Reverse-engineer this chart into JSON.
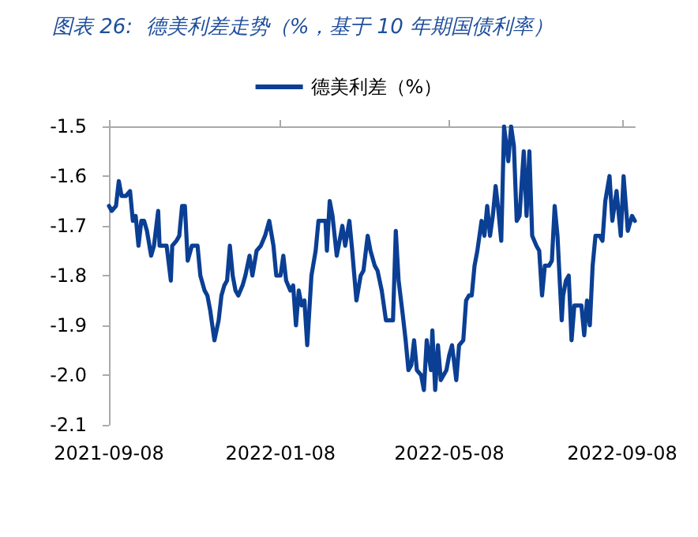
{
  "chart_data": {
    "type": "line",
    "title": "图表 26:  德美利差走势（%，基于 10 年期国债利率）",
    "x": [
      "2021-09-08",
      "2021-09-10",
      "2021-09-13",
      "2021-09-15",
      "2021-09-17",
      "2021-09-20",
      "2021-09-23",
      "2021-09-25",
      "2021-09-27",
      "2021-09-29",
      "2021-10-01",
      "2021-10-03",
      "2021-10-05",
      "2021-10-08",
      "2021-10-10",
      "2021-10-13",
      "2021-10-14",
      "2021-10-19",
      "2021-10-22",
      "2021-10-23",
      "2021-10-26",
      "2021-10-28",
      "2021-10-30",
      "2021-11-01",
      "2021-11-03",
      "2021-11-06",
      "2021-11-10",
      "2021-11-12",
      "2021-11-15",
      "2021-11-17",
      "2021-11-19",
      "2021-11-22",
      "2021-11-25",
      "2021-11-27",
      "2021-11-29",
      "2021-12-01",
      "2021-12-03",
      "2021-12-05",
      "2021-12-07",
      "2021-12-09",
      "2021-12-12",
      "2021-12-14",
      "2021-12-17",
      "2021-12-19",
      "2021-12-22",
      "2021-12-25",
      "2021-12-28",
      "2021-12-31",
      "2022-01-03",
      "2022-01-05",
      "2022-01-08",
      "2022-01-10",
      "2022-01-12",
      "2022-01-15",
      "2022-01-17",
      "2022-01-19",
      "2022-01-21",
      "2022-01-23",
      "2022-01-25",
      "2022-01-27",
      "2022-01-30",
      "2022-02-02",
      "2022-02-04",
      "2022-02-09",
      "2022-02-10",
      "2022-02-12",
      "2022-02-14",
      "2022-02-17",
      "2022-02-19",
      "2022-02-21",
      "2022-02-23",
      "2022-02-26",
      "2022-02-28",
      "2022-03-03",
      "2022-03-06",
      "2022-03-08",
      "2022-03-11",
      "2022-03-13",
      "2022-03-16",
      "2022-03-18",
      "2022-03-21",
      "2022-03-24",
      "2022-03-29",
      "2022-03-31",
      "2022-04-02",
      "2022-04-05",
      "2022-04-07",
      "2022-04-09",
      "2022-04-11",
      "2022-04-13",
      "2022-04-15",
      "2022-04-18",
      "2022-04-20",
      "2022-04-22",
      "2022-04-25",
      "2022-04-26",
      "2022-04-28",
      "2022-04-30",
      "2022-05-02",
      "2022-05-04",
      "2022-05-06",
      "2022-05-08",
      "2022-05-10",
      "2022-05-13",
      "2022-05-15",
      "2022-05-18",
      "2022-05-20",
      "2022-05-22",
      "2022-05-24",
      "2022-05-26",
      "2022-05-28",
      "2022-05-31",
      "2022-06-02",
      "2022-06-04",
      "2022-06-06",
      "2022-06-08",
      "2022-06-10",
      "2022-06-12",
      "2022-06-14",
      "2022-06-16",
      "2022-06-19",
      "2022-06-21",
      "2022-06-23",
      "2022-06-25",
      "2022-06-27",
      "2022-06-30",
      "2022-07-02",
      "2022-07-04",
      "2022-07-06",
      "2022-07-09",
      "2022-07-11",
      "2022-07-13",
      "2022-07-15",
      "2022-07-18",
      "2022-07-20",
      "2022-07-22",
      "2022-07-24",
      "2022-07-27",
      "2022-07-28",
      "2022-07-30",
      "2022-08-01",
      "2022-08-03",
      "2022-08-05",
      "2022-08-08",
      "2022-08-10",
      "2022-08-12",
      "2022-08-14",
      "2022-08-16",
      "2022-08-18",
      "2022-08-20",
      "2022-08-23",
      "2022-08-25",
      "2022-08-27",
      "2022-08-30",
      "2022-09-01",
      "2022-09-04",
      "2022-09-07",
      "2022-09-09",
      "2022-09-12",
      "2022-09-15",
      "2022-09-17"
    ],
    "series": [
      {
        "name": "德美利差（%）",
        "color": "#0b3f94",
        "values": [
          -1.66,
          -1.67,
          -1.66,
          -1.61,
          -1.64,
          -1.64,
          -1.63,
          -1.69,
          -1.68,
          -1.74,
          -1.69,
          -1.69,
          -1.71,
          -1.76,
          -1.74,
          -1.67,
          -1.74,
          -1.74,
          -1.81,
          -1.74,
          -1.73,
          -1.72,
          -1.66,
          -1.66,
          -1.77,
          -1.74,
          -1.74,
          -1.8,
          -1.83,
          -1.84,
          -1.87,
          -1.93,
          -1.89,
          -1.84,
          -1.82,
          -1.81,
          -1.74,
          -1.8,
          -1.83,
          -1.84,
          -1.82,
          -1.8,
          -1.76,
          -1.8,
          -1.75,
          -1.74,
          -1.72,
          -1.69,
          -1.74,
          -1.8,
          -1.8,
          -1.76,
          -1.81,
          -1.83,
          -1.82,
          -1.9,
          -1.83,
          -1.86,
          -1.85,
          -1.94,
          -1.8,
          -1.75,
          -1.69,
          -1.69,
          -1.75,
          -1.65,
          -1.68,
          -1.76,
          -1.73,
          -1.7,
          -1.74,
          -1.69,
          -1.75,
          -1.85,
          -1.8,
          -1.79,
          -1.72,
          -1.75,
          -1.78,
          -1.79,
          -1.83,
          -1.89,
          -1.89,
          -1.71,
          -1.81,
          -1.88,
          -1.93,
          -1.99,
          -1.98,
          -1.93,
          -1.99,
          -2.0,
          -2.03,
          -1.93,
          -1.99,
          -1.91,
          -2.03,
          -1.94,
          -2.01,
          -2.0,
          -1.99,
          -1.96,
          -1.94,
          -2.01,
          -1.94,
          -1.93,
          -1.85,
          -1.84,
          -1.84,
          -1.78,
          -1.75,
          -1.69,
          -1.72,
          -1.66,
          -1.72,
          -1.68,
          -1.62,
          -1.67,
          -1.73,
          -1.5,
          -1.57,
          -1.5,
          -1.54,
          -1.69,
          -1.68,
          -1.55,
          -1.68,
          -1.55,
          -1.72,
          -1.74,
          -1.75,
          -1.84,
          -1.78,
          -1.78,
          -1.77,
          -1.66,
          -1.72,
          -1.89,
          -1.84,
          -1.81,
          -1.8,
          -1.93,
          -1.86,
          -1.86,
          -1.86,
          -1.92,
          -1.85,
          -1.9,
          -1.78,
          -1.72,
          -1.72,
          -1.73,
          -1.65,
          -1.6,
          -1.69,
          -1.63,
          -1.72,
          -1.6,
          -1.71,
          -1.68,
          -1.69
        ]
      }
    ],
    "xlim": [
      "2021-09-08",
      "2022-09-17"
    ],
    "xticks": [
      "2021-09-08",
      "2022-01-08",
      "2022-05-08",
      "2022-09-08"
    ],
    "ylim": [
      -2.1,
      -1.5
    ],
    "yticks": [
      -1.5,
      -1.6,
      -1.7,
      -1.8,
      -1.9,
      {
        "value": -2,
        "label": "-2.0"
      },
      -2.1
    ],
    "grid": false,
    "legend": "top",
    "marker": "none",
    "line_style": "solid"
  }
}
